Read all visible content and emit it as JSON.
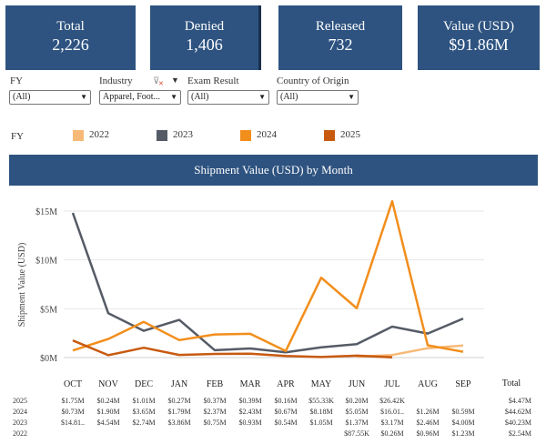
{
  "kpis": [
    {
      "label": "Total",
      "value": "2,226"
    },
    {
      "label": "Denied",
      "value": "1,406"
    },
    {
      "label": "Released",
      "value": "732"
    },
    {
      "label": "Value (USD)",
      "value": "$91.86M"
    }
  ],
  "filters": [
    {
      "label": "FY",
      "value": "(All)"
    },
    {
      "label": "Industry",
      "value": "Apparel, Foot..."
    },
    {
      "label": "Exam Result",
      "value": "(All)"
    },
    {
      "label": "Country of Origin",
      "value": "(All)"
    }
  ],
  "legend": {
    "label": "FY",
    "items": [
      {
        "name": "2022",
        "color": "#f7b977"
      },
      {
        "name": "2023",
        "color": "#555b66"
      },
      {
        "name": "2024",
        "color": "#f28e1c"
      },
      {
        "name": "2025",
        "color": "#c85a10"
      }
    ]
  },
  "chart_title": "Shipment Value (USD) by Month",
  "chart_data": {
    "type": "line",
    "title": "Shipment Value (USD) by Month",
    "ylabel": "Shipment Value (USD)",
    "xlabel": "",
    "categories": [
      "OCT",
      "NOV",
      "DEC",
      "JAN",
      "FEB",
      "MAR",
      "APR",
      "MAY",
      "JUN",
      "JUL",
      "AUG",
      "SEP"
    ],
    "yticks": [
      {
        "v": 0,
        "label": "$0M"
      },
      {
        "v": 5,
        "label": "$5M"
      },
      {
        "v": 10,
        "label": "$10M"
      },
      {
        "v": 15,
        "label": "$15M"
      }
    ],
    "ylim": [
      0,
      16.5
    ],
    "grid": true,
    "series": [
      {
        "name": "2022",
        "color": "#f7b977",
        "values": [
          null,
          null,
          null,
          null,
          null,
          null,
          null,
          null,
          0.09,
          0.26,
          0.96,
          1.23
        ]
      },
      {
        "name": "2023",
        "color": "#555b66",
        "values": [
          14.81,
          4.54,
          2.74,
          3.86,
          0.75,
          0.93,
          0.54,
          1.05,
          1.37,
          3.17,
          2.46,
          4.0
        ]
      },
      {
        "name": "2024",
        "color": "#f28e1c",
        "values": [
          0.73,
          1.9,
          3.65,
          1.79,
          2.37,
          2.43,
          0.67,
          8.18,
          5.05,
          16.01,
          1.26,
          0.59
        ]
      },
      {
        "name": "2025",
        "color": "#c85a10",
        "values": [
          1.75,
          0.24,
          1.01,
          0.27,
          0.37,
          0.39,
          0.16,
          0.055,
          0.2,
          0.026,
          null,
          null
        ]
      }
    ]
  },
  "table": {
    "total_header": "Total",
    "rows": [
      {
        "year": "2025",
        "cells": [
          "$1.75M",
          "$0.24M",
          "$1.01M",
          "$0.27M",
          "$0.37M",
          "$0.39M",
          "$0.16M",
          "$55.33K",
          "$0.20M",
          "$26.42K",
          "",
          ""
        ],
        "total": "$4.47M"
      },
      {
        "year": "2024",
        "cells": [
          "$0.73M",
          "$1.90M",
          "$3.65M",
          "$1.79M",
          "$2.37M",
          "$2.43M",
          "$0.67M",
          "$8.18M",
          "$5.05M",
          "$16.01..",
          "$1.26M",
          "$0.59M"
        ],
        "total": "$44.62M"
      },
      {
        "year": "2023",
        "cells": [
          "$14.81..",
          "$4.54M",
          "$2.74M",
          "$3.86M",
          "$0.75M",
          "$0.93M",
          "$0.54M",
          "$1.05M",
          "$1.37M",
          "$3.17M",
          "$2.46M",
          "$4.00M"
        ],
        "total": "$40.23M"
      },
      {
        "year": "2022",
        "cells": [
          "",
          "",
          "",
          "",
          "",
          "",
          "",
          "",
          "$87.55K",
          "$0.26M",
          "$0.96M",
          "$1.23M"
        ],
        "total": "$2.54M"
      }
    ]
  }
}
